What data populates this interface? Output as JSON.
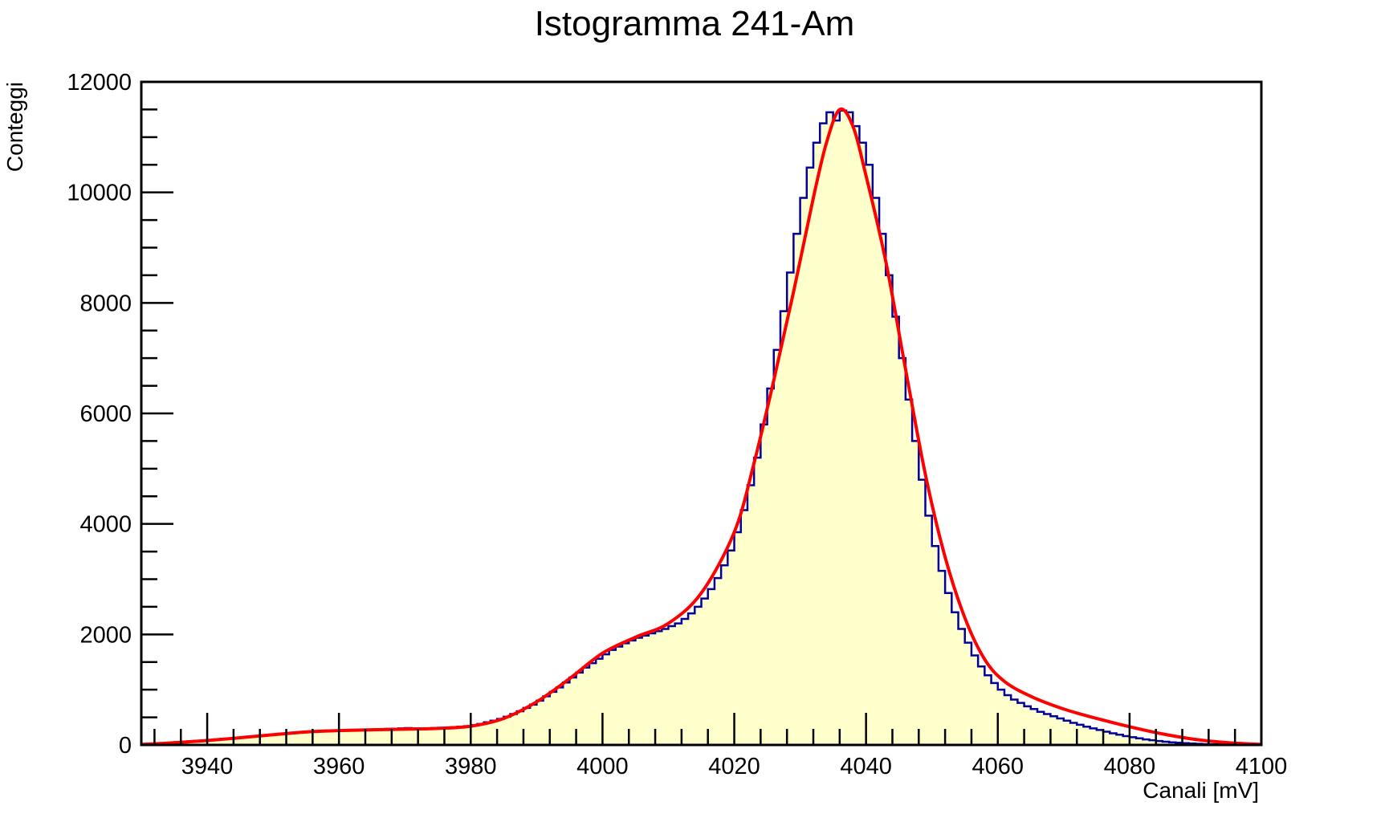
{
  "chart_data": {
    "type": "histogram",
    "title": "Istogramma 241-Am",
    "xlabel": "Canali [mV]",
    "ylabel": "Conteggi",
    "xlim": [
      3930,
      4100
    ],
    "ylim": [
      0,
      12000
    ],
    "x_ticks": [
      3940,
      3960,
      3980,
      4000,
      4020,
      4040,
      4060,
      4080,
      4100
    ],
    "y_ticks": [
      0,
      2000,
      4000,
      6000,
      8000,
      10000,
      12000
    ],
    "grid": false,
    "legend": "none",
    "colors": {
      "histogram_fill": "#ffffcc",
      "histogram_line": "#000099",
      "fit_line": "#ff0000"
    },
    "series": [
      {
        "kind": "histogram",
        "bin_width": 1.0,
        "bin_starts": [
          3930,
          3931,
          3932,
          3933,
          3934,
          3935,
          3936,
          3937,
          3938,
          3939,
          3940,
          3941,
          3942,
          3943,
          3944,
          3945,
          3946,
          3947,
          3948,
          3949,
          3950,
          3951,
          3952,
          3953,
          3954,
          3955,
          3956,
          3957,
          3958,
          3959,
          3960,
          3961,
          3962,
          3963,
          3964,
          3965,
          3966,
          3967,
          3968,
          3969,
          3970,
          3971,
          3972,
          3973,
          3974,
          3975,
          3976,
          3977,
          3978,
          3979,
          3980,
          3981,
          3982,
          3983,
          3984,
          3985,
          3986,
          3987,
          3988,
          3989,
          3990,
          3991,
          3992,
          3993,
          3994,
          3995,
          3996,
          3997,
          3998,
          3999,
          4000,
          4001,
          4002,
          4003,
          4004,
          4005,
          4006,
          4007,
          4008,
          4009,
          4010,
          4011,
          4012,
          4013,
          4014,
          4015,
          4016,
          4017,
          4018,
          4019,
          4020,
          4021,
          4022,
          4023,
          4024,
          4025,
          4026,
          4027,
          4028,
          4029,
          4030,
          4031,
          4032,
          4033,
          4034,
          4035,
          4036,
          4037,
          4038,
          4039,
          4040,
          4041,
          4042,
          4043,
          4044,
          4045,
          4046,
          4047,
          4048,
          4049,
          4050,
          4051,
          4052,
          4053,
          4054,
          4055,
          4056,
          4057,
          4058,
          4059,
          4060,
          4061,
          4062,
          4063,
          4064,
          4065,
          4066,
          4067,
          4068,
          4069,
          4070,
          4071,
          4072,
          4073,
          4074,
          4075,
          4076,
          4077,
          4078,
          4079,
          4080,
          4081,
          4082,
          4083,
          4084,
          4085,
          4086,
          4087,
          4088,
          4089,
          4090,
          4091,
          4092,
          4093,
          4094,
          4095,
          4096,
          4097,
          4098,
          4099
        ],
        "counts": [
          10,
          15,
          20,
          30,
          40,
          50,
          60,
          65,
          75,
          80,
          85,
          100,
          110,
          120,
          130,
          140,
          150,
          160,
          170,
          180,
          190,
          200,
          210,
          220,
          230,
          240,
          245,
          250,
          255,
          260,
          265,
          270,
          275,
          272,
          278,
          280,
          285,
          290,
          295,
          300,
          305,
          300,
          298,
          302,
          305,
          310,
          315,
          320,
          330,
          340,
          360,
          380,
          410,
          440,
          470,
          510,
          560,
          610,
          670,
          730,
          800,
          880,
          960,
          1040,
          1130,
          1220,
          1310,
          1400,
          1480,
          1560,
          1640,
          1720,
          1780,
          1840,
          1890,
          1940,
          1980,
          2020,
          2060,
          2100,
          2150,
          2200,
          2280,
          2380,
          2500,
          2650,
          2820,
          3020,
          3250,
          3520,
          3850,
          4250,
          4700,
          5200,
          5800,
          6450,
          7150,
          7850,
          8550,
          9250,
          9900,
          10450,
          10900,
          11250,
          11450,
          11300,
          11480,
          11450,
          11200,
          10900,
          10500,
          9900,
          9250,
          8500,
          7750,
          7000,
          6250,
          5500,
          4800,
          4150,
          3600,
          3150,
          2750,
          2400,
          2100,
          1850,
          1620,
          1420,
          1260,
          1120,
          1000,
          900,
          820,
          760,
          700,
          650,
          600,
          560,
          520,
          480,
          440,
          400,
          365,
          330,
          300,
          270,
          240,
          210,
          185,
          160,
          140,
          120,
          100,
          85,
          70,
          58,
          48,
          40,
          32,
          25,
          20,
          15,
          12,
          10,
          8,
          6,
          4,
          3,
          2,
          1
        ]
      },
      {
        "kind": "fit",
        "x": [
          3930,
          3935,
          3940,
          3945,
          3950,
          3955,
          3960,
          3965,
          3970,
          3975,
          3980,
          3985,
          3990,
          3995,
          4000,
          4005,
          4010,
          4015,
          4020,
          4023,
          4026,
          4029,
          4032,
          4034,
          4036,
          4038,
          4040,
          4043,
          4046,
          4049,
          4052,
          4055,
          4058,
          4061,
          4065,
          4070,
          4075,
          4080,
          4085,
          4090,
          4095,
          4100
        ],
        "y": [
          10,
          40,
          80,
          130,
          185,
          235,
          260,
          275,
          285,
          300,
          340,
          480,
          780,
          1200,
          1660,
          1950,
          2200,
          2750,
          3850,
          5100,
          6600,
          8200,
          9900,
          10900,
          11500,
          11200,
          10300,
          8750,
          6800,
          4900,
          3400,
          2300,
          1550,
          1150,
          880,
          650,
          480,
          330,
          200,
          100,
          40,
          10
        ]
      }
    ]
  }
}
